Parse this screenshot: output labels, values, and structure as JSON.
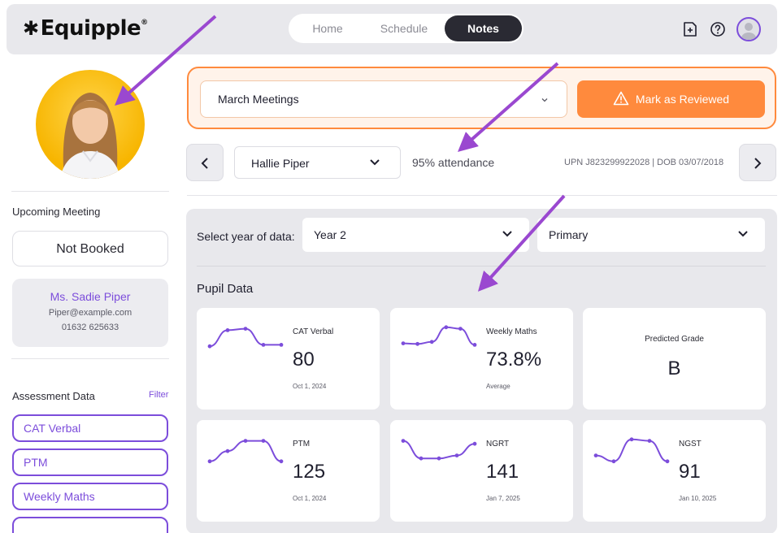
{
  "header": {
    "logo": "Equipple",
    "logo_mark": "®",
    "nav": [
      {
        "label": "Home",
        "active": false
      },
      {
        "label": "Schedule",
        "active": false
      },
      {
        "label": "Notes",
        "active": true
      }
    ],
    "icons": [
      "add-note-icon",
      "help-icon",
      "user-avatar-icon"
    ]
  },
  "sidebar": {
    "upcoming_label": "Upcoming Meeting",
    "meeting_status": "Not Booked",
    "contact": {
      "name": "Ms. Sadie Piper",
      "email": "Piper@example.com",
      "phone": "01632 625633"
    },
    "assessment_label": "Assessment Data",
    "filter_label": "Filter",
    "assessments": [
      "CAT Verbal",
      "PTM",
      "Weekly Maths"
    ]
  },
  "meeting": {
    "selected": "March Meetings",
    "review_button": "Mark as Reviewed"
  },
  "pupil": {
    "name": "Hallie Piper",
    "attendance": "95% attendance",
    "upn_dob": "UPN J823299922028 | DOB 03/07/2018"
  },
  "data_panel": {
    "year_label": "Select year of data:",
    "year_value": "Year 2",
    "phase_value": "Primary",
    "title": "Pupil Data",
    "cards": [
      {
        "title": "CAT Verbal",
        "value": "80",
        "sub": "Oct 1, 2024",
        "spark": [
          0.3,
          0.85,
          0.9,
          0.35,
          0.35
        ]
      },
      {
        "title": "Weekly Maths",
        "value": "73.8%",
        "sub": "Average",
        "spark": [
          0.4,
          0.38,
          0.45,
          0.95,
          0.9,
          0.35
        ]
      },
      {
        "title": "Predicted Grade",
        "value": "B",
        "sub": "",
        "spark": []
      },
      {
        "title": "PTM",
        "value": "125",
        "sub": "Oct 1, 2024",
        "spark": [
          0.2,
          0.55,
          0.9,
          0.9,
          0.2
        ]
      },
      {
        "title": "NGRT",
        "value": "141",
        "sub": "Jan 7, 2025",
        "spark": [
          0.9,
          0.3,
          0.3,
          0.4,
          0.8
        ]
      },
      {
        "title": "NGST",
        "value": "91",
        "sub": "Jan 10, 2025",
        "spark": [
          0.4,
          0.2,
          0.95,
          0.9,
          0.2
        ]
      }
    ]
  },
  "colors": {
    "accent": "#7c4ddb",
    "orange": "#ff8a3d",
    "arrow": "#9a48d0"
  }
}
